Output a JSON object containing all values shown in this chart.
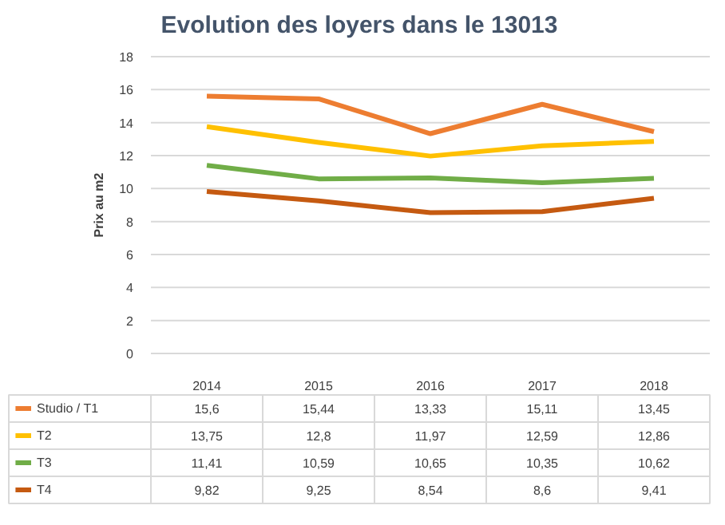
{
  "chart_data": {
    "type": "line",
    "title": "Evolution des loyers dans le 13013",
    "ylabel": "Prix au m2",
    "categories": [
      "2014",
      "2015",
      "2016",
      "2017",
      "2018"
    ],
    "series": [
      {
        "name": "Studio / T1",
        "color": "#ed7d31",
        "values": [
          15.6,
          15.44,
          13.33,
          15.11,
          13.45
        ],
        "value_labels": [
          "15,6",
          "15,44",
          "13,33",
          "15,11",
          "13,45"
        ]
      },
      {
        "name": "T2",
        "color": "#ffc000",
        "values": [
          13.75,
          12.8,
          11.97,
          12.59,
          12.86
        ],
        "value_labels": [
          "13,75",
          "12,8",
          "11,97",
          "12,59",
          "12,86"
        ]
      },
      {
        "name": "T3",
        "color": "#70ad47",
        "values": [
          11.41,
          10.59,
          10.65,
          10.35,
          10.62
        ],
        "value_labels": [
          "11,41",
          "10,59",
          "10,65",
          "10,35",
          "10,62"
        ]
      },
      {
        "name": "T4",
        "color": "#c55a11",
        "values": [
          9.82,
          9.25,
          8.54,
          8.6,
          9.41
        ],
        "value_labels": [
          "9,82",
          "9,25",
          "8,54",
          "8,6",
          "9,41"
        ]
      }
    ],
    "ylim": [
      0,
      18
    ],
    "yticks": [
      0,
      2,
      4,
      6,
      8,
      10,
      12,
      14,
      16,
      18
    ],
    "grid": "y",
    "legend": "bottom"
  }
}
